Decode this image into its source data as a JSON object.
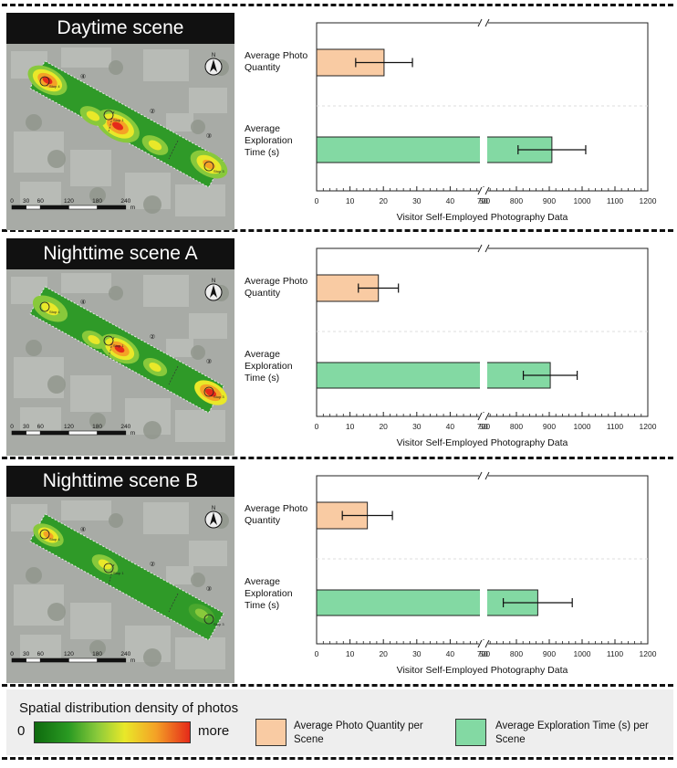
{
  "scenes": [
    {
      "title": "Daytime scene",
      "map": {
        "north_label": "N",
        "area_labels": [
          "④",
          "②",
          "③"
        ],
        "stop_labels": [
          "Stop 4",
          "Stop 1",
          "Stop 3"
        ]
      },
      "chart_data": {
        "type": "bar",
        "orientation": "horizontal",
        "categories": [
          "Average Photo Quantity",
          "Average Exploration Time (s)"
        ],
        "values": [
          20.2,
          908
        ],
        "error": [
          8.5,
          103
        ],
        "xlabel": "Visitor Self-Employed Photography Data",
        "axis_break": [
          50,
          700
        ],
        "x_ticks": [
          0,
          10,
          20,
          30,
          40,
          50,
          700,
          800,
          900,
          1000,
          1100,
          1200
        ],
        "grid": false
      }
    },
    {
      "title": "Nighttime scene A",
      "map": {
        "north_label": "N",
        "area_labels": [
          "④",
          "②",
          "③"
        ],
        "stop_labels": [
          "Stop 4",
          "Stop 1",
          "Stop 3"
        ]
      },
      "chart_data": {
        "type": "bar",
        "orientation": "horizontal",
        "categories": [
          "Average Photo Quantity",
          "Average Exploration Time (s)"
        ],
        "values": [
          18.5,
          903
        ],
        "error": [
          6,
          82
        ],
        "xlabel": "Visitor Self-Employed Photography Data",
        "axis_break": [
          50,
          700
        ],
        "x_ticks": [
          0,
          10,
          20,
          30,
          40,
          50,
          700,
          800,
          900,
          1000,
          1100,
          1200
        ],
        "grid": false
      }
    },
    {
      "title": "Nighttime scene B",
      "map": {
        "north_label": "N",
        "area_labels": [
          "④",
          "②",
          "③"
        ],
        "stop_labels": [
          "Stop 4",
          "Stop 1",
          "Stop 3"
        ]
      },
      "chart_data": {
        "type": "bar",
        "orientation": "horizontal",
        "categories": [
          "Average Photo Quantity",
          "Average Exploration Time (s)"
        ],
        "values": [
          15.2,
          865
        ],
        "error": [
          7.5,
          105
        ],
        "xlabel": "Visitor Self-Employed Photography Data",
        "axis_break": [
          50,
          700
        ],
        "x_ticks": [
          0,
          10,
          20,
          30,
          40,
          50,
          700,
          800,
          900,
          1000,
          1100,
          1200
        ],
        "grid": false
      }
    }
  ],
  "scale_bar": {
    "ticks": [
      "0",
      "30",
      "60",
      "120",
      "180",
      "240"
    ],
    "unit": "m"
  },
  "category_labels": [
    [
      "Average Photo",
      "Quantity"
    ],
    [
      "Average",
      "Exploration",
      "Time (s)"
    ]
  ],
  "legend": {
    "title": "Spatial distribution density of photos",
    "min_label": "0",
    "max_label": "more",
    "photo_label": "Average Photo Quantity per Scene",
    "time_label": "Average Exploration Time (s) per Scene"
  },
  "colors": {
    "photo_bar": "#f9cba3",
    "time_bar": "#83d9a3"
  }
}
